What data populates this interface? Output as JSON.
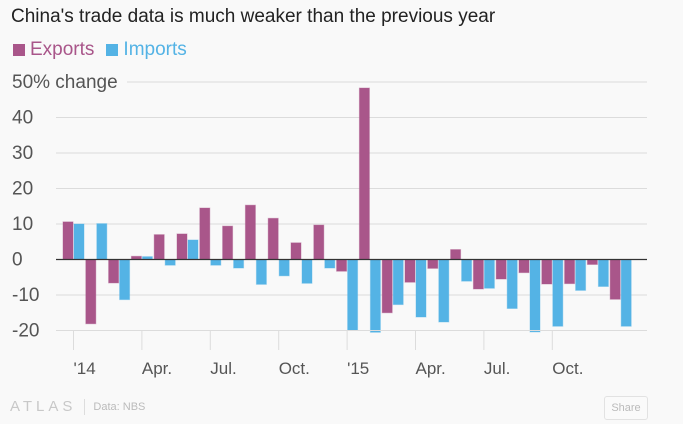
{
  "chart_data": {
    "type": "bar",
    "title": "China's trade data is much weaker than the previous year",
    "ylabel": "50% change",
    "ylim": [
      -20,
      50
    ],
    "yticks": [
      50,
      40,
      30,
      20,
      10,
      0,
      -10,
      -20
    ],
    "ytick_labels": [
      "50% change",
      "40",
      "30",
      "20",
      "10",
      "0",
      "-10",
      "-20"
    ],
    "grid": true,
    "legend": "top-left",
    "categories": [
      "Jan 2014",
      "Feb 2014",
      "Mar 2014",
      "Apr 2014",
      "May 2014",
      "Jun 2014",
      "Jul 2014",
      "Aug 2014",
      "Sep 2014",
      "Oct 2014",
      "Nov 2014",
      "Dec 2014",
      "Jan 2015",
      "Feb 2015",
      "Mar 2015",
      "Apr 2015",
      "May 2015",
      "Jun 2015",
      "Jul 2015",
      "Aug 2015",
      "Sep 2015",
      "Oct 2015",
      "Nov 2015",
      "Dec 2015",
      "Jan 2016"
    ],
    "xtick_labels": [
      {
        "month_index": 0,
        "label": "'14"
      },
      {
        "month_index": 3,
        "label": "Apr."
      },
      {
        "month_index": 6,
        "label": "Jul."
      },
      {
        "month_index": 9,
        "label": "Oct."
      },
      {
        "month_index": 12,
        "label": "'15"
      },
      {
        "month_index": 15,
        "label": "Apr."
      },
      {
        "month_index": 18,
        "label": "Jul."
      },
      {
        "month_index": 21,
        "label": "Oct."
      }
    ],
    "series": [
      {
        "name": "Exports",
        "color": "#a9568a",
        "values": [
          10.6,
          -18.1,
          -6.6,
          0.9,
          7.0,
          7.2,
          14.5,
          9.4,
          15.3,
          11.6,
          4.7,
          9.7,
          -3.3,
          48.3,
          -15.0,
          -6.4,
          -2.5,
          2.8,
          -8.3,
          -5.5,
          -3.7,
          -6.9,
          -6.8,
          -1.4,
          -11.2
        ]
      },
      {
        "name": "Imports",
        "color": "#54b3e5",
        "values": [
          10.0,
          10.1,
          -11.3,
          0.8,
          -1.6,
          5.5,
          -1.6,
          -2.4,
          -7.0,
          -4.6,
          -6.7,
          -2.4,
          -19.9,
          -20.5,
          -12.7,
          -16.2,
          -17.6,
          -6.1,
          -8.1,
          -13.8,
          -20.4,
          -18.8,
          -8.7,
          -7.6,
          -18.8
        ]
      }
    ]
  },
  "footer": {
    "logo": "ATLAS",
    "source": "Data: NBS",
    "share_label": "Share"
  }
}
